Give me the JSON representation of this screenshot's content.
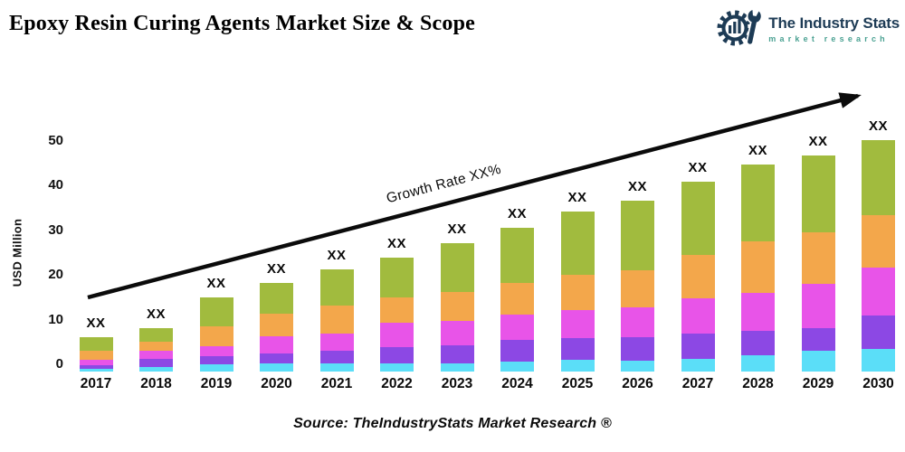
{
  "title": "Epoxy Resin Curing Agents Market Size & Scope",
  "logo": {
    "name": "The Industry Stats",
    "tagline": "market research",
    "name_color": "#1d3b55",
    "tagline_color": "#4aa192"
  },
  "chart_data": {
    "type": "bar",
    "stacked": true,
    "title": "Epoxy Resin Curing Agents Market Size & Scope",
    "xlabel": "",
    "ylabel": "USD Million",
    "yticks": [
      0,
      10,
      20,
      30,
      40,
      50
    ],
    "ylim": [
      0,
      55
    ],
    "grid": false,
    "legend": "none",
    "bar_value_label": "XX",
    "annotation": "Growth Rate XX%",
    "categories": [
      "2017",
      "2018",
      "2019",
      "2020",
      "2021",
      "2022",
      "2023",
      "2024",
      "2025",
      "2026",
      "2027",
      "2028",
      "2029",
      "2030"
    ],
    "series": [
      {
        "name": "cyan",
        "color": "#5bdef8",
        "values": [
          0.7,
          1.1,
          1.6,
          1.8,
          1.9,
          1.9,
          1.8,
          2.2,
          2.6,
          2.4,
          2.9,
          3.6,
          4.6,
          5.1
        ]
      },
      {
        "name": "purple",
        "color": "#8c48e4",
        "values": [
          0.8,
          1.8,
          1.8,
          2.2,
          2.7,
          3.6,
          4.1,
          4.9,
          4.9,
          5.2,
          5.7,
          5.6,
          5.2,
          7.4
        ]
      },
      {
        "name": "magenta",
        "color": "#e854e8",
        "values": [
          1.2,
          1.7,
          2.3,
          3.8,
          3.9,
          5.5,
          5.4,
          5.6,
          6.2,
          6.8,
          7.7,
          8.5,
          9.8,
          10.8
        ]
      },
      {
        "name": "orange",
        "color": "#f3a74b",
        "values": [
          1.9,
          2.0,
          4.4,
          5.2,
          6.2,
          5.6,
          6.6,
          7.2,
          8.0,
          8.3,
          9.9,
          11.4,
          11.5,
          11.8
        ]
      },
      {
        "name": "green",
        "color": "#a1bb3e",
        "values": [
          3.0,
          3.2,
          6.4,
          6.8,
          8.2,
          8.9,
          10.8,
          12.3,
          14.1,
          15.6,
          16.3,
          17.2,
          17.3,
          16.7
        ]
      }
    ],
    "totals_estimate": [
      7.6,
      9.8,
      16.5,
      19.8,
      22.9,
      25.5,
      28.7,
      32.2,
      35.8,
      38.3,
      42.5,
      46.3,
      48.4,
      51.8
    ]
  },
  "source": "Source: TheIndustryStats Market Research ®"
}
